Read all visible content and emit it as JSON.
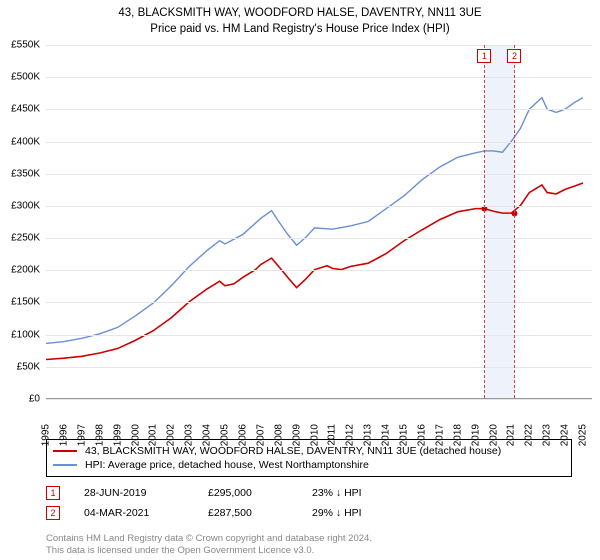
{
  "title_line1": "43, BLACKSMITH WAY, WOODFORD HALSE, DAVENTRY, NN11 3UE",
  "title_line2": "Price paid vs. HM Land Registry's House Price Index (HPI)",
  "chart": {
    "type": "line",
    "background_color": "#ffffff",
    "grid_color": "#e6e6e6",
    "highlight_band_color": "#eef2fb",
    "highlight_band": {
      "x_from": 2019.5,
      "x_to": 2021.2
    },
    "vline_color": "#cc4444",
    "ylim": [
      0,
      550000
    ],
    "ytick_step": 50000,
    "ytick_labels": [
      "£0",
      "£50K",
      "£100K",
      "£150K",
      "£200K",
      "£250K",
      "£300K",
      "£350K",
      "£400K",
      "£450K",
      "£500K",
      "£550K"
    ],
    "xlim": [
      1995,
      2025.5
    ],
    "xtick_step": 1,
    "xtick_labels": [
      "1995",
      "1996",
      "1997",
      "1998",
      "1999",
      "2000",
      "2001",
      "2002",
      "2003",
      "2004",
      "2005",
      "2006",
      "2007",
      "2008",
      "2009",
      "2010",
      "2011",
      "2012",
      "2013",
      "2014",
      "2015",
      "2016",
      "2017",
      "2018",
      "2019",
      "2020",
      "2021",
      "2022",
      "2023",
      "2024",
      "2025"
    ],
    "series": [
      {
        "name": "property",
        "label": "43, BLACKSMITH WAY, WOODFORD HALSE, DAVENTRY, NN11 3UE (detached house)",
        "color": "#cc0000",
        "line_width": 1.6,
        "points": [
          [
            1995,
            60000
          ],
          [
            1996,
            62000
          ],
          [
            1997,
            65000
          ],
          [
            1998,
            70000
          ],
          [
            1999,
            77000
          ],
          [
            2000,
            90000
          ],
          [
            2001,
            105000
          ],
          [
            2002,
            125000
          ],
          [
            2003,
            150000
          ],
          [
            2004,
            170000
          ],
          [
            2004.7,
            182000
          ],
          [
            2005,
            175000
          ],
          [
            2005.5,
            178000
          ],
          [
            2006,
            188000
          ],
          [
            2006.7,
            200000
          ],
          [
            2007,
            208000
          ],
          [
            2007.6,
            218000
          ],
          [
            2008,
            205000
          ],
          [
            2008.5,
            188000
          ],
          [
            2009,
            172000
          ],
          [
            2009.5,
            185000
          ],
          [
            2010,
            200000
          ],
          [
            2010.7,
            206000
          ],
          [
            2011,
            202000
          ],
          [
            2011.5,
            200000
          ],
          [
            2012,
            205000
          ],
          [
            2013,
            210000
          ],
          [
            2014,
            225000
          ],
          [
            2015,
            245000
          ],
          [
            2016,
            262000
          ],
          [
            2017,
            278000
          ],
          [
            2018,
            290000
          ],
          [
            2019,
            295000
          ],
          [
            2019.5,
            295000
          ],
          [
            2020,
            291000
          ],
          [
            2020.5,
            288000
          ],
          [
            2021,
            288000
          ],
          [
            2021.5,
            300000
          ],
          [
            2022,
            320000
          ],
          [
            2022.7,
            332000
          ],
          [
            2023,
            320000
          ],
          [
            2023.5,
            318000
          ],
          [
            2024,
            325000
          ],
          [
            2024.5,
            330000
          ],
          [
            2025,
            335000
          ]
        ]
      },
      {
        "name": "hpi",
        "label": "HPI: Average price, detached house, West Northamptonshire",
        "color": "#6a8fd4",
        "line_width": 1.4,
        "points": [
          [
            1995,
            85000
          ],
          [
            1996,
            88000
          ],
          [
            1997,
            93000
          ],
          [
            1998,
            100000
          ],
          [
            1999,
            110000
          ],
          [
            2000,
            128000
          ],
          [
            2001,
            148000
          ],
          [
            2002,
            175000
          ],
          [
            2003,
            205000
          ],
          [
            2004,
            230000
          ],
          [
            2004.7,
            245000
          ],
          [
            2005,
            240000
          ],
          [
            2006,
            255000
          ],
          [
            2007,
            280000
          ],
          [
            2007.6,
            292000
          ],
          [
            2008,
            275000
          ],
          [
            2008.5,
            255000
          ],
          [
            2009,
            238000
          ],
          [
            2009.5,
            250000
          ],
          [
            2010,
            265000
          ],
          [
            2011,
            263000
          ],
          [
            2012,
            268000
          ],
          [
            2013,
            275000
          ],
          [
            2014,
            295000
          ],
          [
            2015,
            315000
          ],
          [
            2016,
            340000
          ],
          [
            2017,
            360000
          ],
          [
            2018,
            375000
          ],
          [
            2019,
            382000
          ],
          [
            2019.5,
            385000
          ],
          [
            2020,
            385000
          ],
          [
            2020.5,
            383000
          ],
          [
            2021,
            400000
          ],
          [
            2021.5,
            420000
          ],
          [
            2022,
            450000
          ],
          [
            2022.7,
            468000
          ],
          [
            2023,
            450000
          ],
          [
            2023.5,
            445000
          ],
          [
            2024,
            450000
          ],
          [
            2024.5,
            460000
          ],
          [
            2025,
            468000
          ]
        ]
      }
    ],
    "sale_markers": [
      {
        "n": "1",
        "x": 2019.49,
        "y": 295000
      },
      {
        "n": "2",
        "x": 2021.17,
        "y": 287500
      }
    ]
  },
  "legend": {
    "border_color": "#000000",
    "items": [
      {
        "color": "#cc0000",
        "label": "43, BLACKSMITH WAY, WOODFORD HALSE, DAVENTRY, NN11 3UE (detached house)"
      },
      {
        "color": "#6a8fd4",
        "label": "HPI: Average price, detached house, West Northamptonshire"
      }
    ]
  },
  "sales": [
    {
      "n": "1",
      "date": "28-JUN-2019",
      "price": "£295,000",
      "diff": "23% ↓ HPI"
    },
    {
      "n": "2",
      "date": "04-MAR-2021",
      "price": "£287,500",
      "diff": "29% ↓ HPI"
    }
  ],
  "footer_line1": "Contains HM Land Registry data © Crown copyright and database right 2024.",
  "footer_line2": "This data is licensed under the Open Government Licence v3.0."
}
